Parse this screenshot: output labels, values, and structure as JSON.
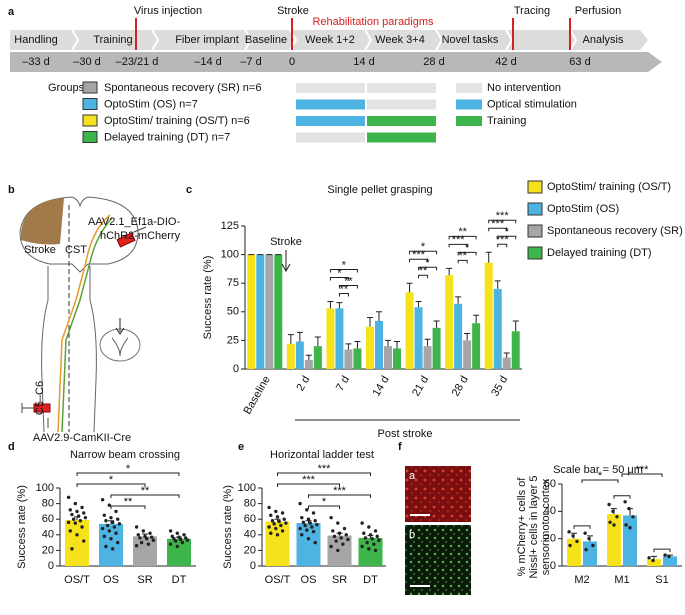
{
  "panel_labels": [
    "a",
    "b",
    "c",
    "d",
    "e",
    "f"
  ],
  "timeline": {
    "events": [
      "Virus injection",
      "Stroke",
      "Tracing",
      "Perfusion"
    ],
    "rehabilitation": "Rehabilitation paradigms",
    "phases": [
      "Handling",
      "Training",
      "Fiber implant",
      "Baseline",
      "Week 1+2",
      "Week 3+4",
      "Novel tasks",
      "Analysis"
    ],
    "days": [
      "–33 d",
      "–30 d",
      "–23/21 d",
      "–14 d",
      "–7 d",
      "0",
      "14 d",
      "28 d",
      "42 d",
      "63 d"
    ],
    "groups_title": "Groups",
    "groups": [
      "Spontaneous recovery (SR) n=6",
      "OptoStim (OS) n=7",
      "OptoStim/ training (OS/T) n=6",
      "Delayed training (DT) n=7"
    ],
    "group_colors": [
      "#a6a6a6",
      "#4cb3e2",
      "#f5e21b",
      "#3db54a"
    ],
    "conditions": [
      "No intervention",
      "Optical stimulation",
      "Training"
    ],
    "condition_colors": [
      "#e3e3e3",
      "#4cb3e2",
      "#3db54a"
    ],
    "schedule": [
      [
        0,
        0
      ],
      [
        1,
        0
      ],
      [
        1,
        2
      ],
      [
        0,
        2
      ]
    ]
  },
  "schematic": {
    "virus_top": [
      "AAV2.1_Ef1a-DIO-",
      "hChR2-mCherry"
    ],
    "stroke": "Stroke",
    "tract": "CST",
    "segment": "C5–C6",
    "virus_bottom": "AAV2.9-CamKII-Cre"
  },
  "histology": {
    "scale_bar": "Scale bar = 50 μm",
    "images": [
      "a",
      "b"
    ]
  },
  "chart_data": [
    {
      "type": "bar",
      "title": "Single pellet grasping",
      "ylabel": "Success rate (%)",
      "xlabel": "Post stroke",
      "annotation": "Stroke",
      "categories": [
        "Baseline",
        "2 d",
        "7 d",
        "14 d",
        "21 d",
        "28 d",
        "35 d"
      ],
      "series": [
        {
          "name": "OptoStim/ training (OS/T)",
          "color": "#f5e21b",
          "values": [
            100,
            22,
            53,
            37,
            67,
            82,
            93
          ],
          "errors": [
            0,
            8,
            6,
            8,
            8,
            6,
            9
          ]
        },
        {
          "name": "OptoStim (OS)",
          "color": "#4cb3e2",
          "values": [
            100,
            24,
            53,
            42,
            54,
            57,
            70
          ],
          "errors": [
            0,
            8,
            5,
            8,
            5,
            6,
            7
          ]
        },
        {
          "name": "Spontaneous recovery (SR)",
          "color": "#a6a6a6",
          "values": [
            100,
            8,
            17,
            20,
            20,
            25,
            10
          ],
          "errors": [
            0,
            4,
            5,
            5,
            6,
            6,
            4
          ]
        },
        {
          "name": "Delayed training (DT)",
          "color": "#3db54a",
          "values": [
            100,
            20,
            18,
            18,
            36,
            40,
            33
          ],
          "errors": [
            0,
            8,
            6,
            6,
            6,
            7,
            9
          ]
        }
      ],
      "ylim": [
        0,
        125
      ],
      "yticks": [
        0,
        25,
        50,
        75,
        100,
        125
      ],
      "significance": [
        [],
        [],
        [
          "*",
          "*",
          "**",
          "**"
        ],
        [],
        [
          "*",
          "***",
          "*",
          "**"
        ],
        [
          "**",
          "***",
          "*",
          "**"
        ],
        [
          "***",
          "***",
          "*",
          "***"
        ]
      ]
    },
    {
      "type": "bar",
      "title": "Narrow beam crossing",
      "ylabel": "Success rate (%)",
      "categories": [
        "OS/T",
        "OS",
        "SR",
        "DT"
      ],
      "colors": [
        "#f5e21b",
        "#4cb3e2",
        "#a6a6a6",
        "#3db54a"
      ],
      "values": [
        59,
        54,
        38,
        35
      ],
      "errors": [
        4,
        4,
        3,
        2
      ],
      "points": [
        [
          88,
          80,
          75,
          72,
          70,
          68,
          66,
          64,
          62,
          60,
          58,
          56,
          55,
          50,
          45,
          40,
          32,
          22
        ],
        [
          85,
          78,
          70,
          65,
          62,
          60,
          58,
          56,
          54,
          52,
          50,
          48,
          45,
          42,
          38,
          35,
          30,
          25,
          22
        ],
        [
          50,
          45,
          42,
          40,
          38,
          37,
          36,
          35,
          33,
          30,
          28,
          26
        ],
        [
          45,
          42,
          40,
          38,
          37,
          36,
          35,
          34,
          33,
          32,
          30,
          28,
          25
        ]
      ],
      "ylim": [
        0,
        100
      ],
      "yticks": [
        0,
        20,
        40,
        60,
        80,
        100
      ],
      "significance": [
        "*",
        "*",
        "**",
        "**"
      ]
    },
    {
      "type": "bar",
      "title": "Horizontal ladder test",
      "ylabel": "Success rate (%)",
      "categories": [
        "OS/T",
        "OS",
        "SR",
        "DT"
      ],
      "colors": [
        "#f5e21b",
        "#4cb3e2",
        "#a6a6a6",
        "#3db54a"
      ],
      "values": [
        57,
        55,
        39,
        36
      ],
      "errors": [
        3,
        3,
        3,
        3
      ],
      "points": [
        [
          75,
          70,
          68,
          65,
          63,
          60,
          58,
          57,
          55,
          54,
          52,
          50,
          48,
          45,
          42,
          40
        ],
        [
          80,
          72,
          68,
          62,
          60,
          58,
          56,
          55,
          53,
          52,
          50,
          48,
          46,
          44,
          40,
          35,
          30
        ],
        [
          62,
          55,
          48,
          45,
          42,
          40,
          38,
          36,
          34,
          32,
          28,
          25,
          20
        ],
        [
          55,
          50,
          45,
          42,
          40,
          38,
          36,
          35,
          33,
          30,
          28,
          25,
          22,
          20
        ]
      ],
      "ylim": [
        0,
        100
      ],
      "yticks": [
        0,
        20,
        40,
        60,
        80,
        100
      ],
      "significance": [
        "***",
        "***",
        "*",
        "***"
      ]
    },
    {
      "type": "bar",
      "ylabel": [
        "% mCherry+ cells of",
        "Nissl+ cells in layer 5",
        "sensorimotor cortex"
      ],
      "categories": [
        "M2",
        "M1",
        "S1"
      ],
      "series": [
        {
          "color": "#f5e21b",
          "values": [
            20,
            38,
            5
          ],
          "errors": [
            4,
            4,
            2
          ],
          "points": [
            [
              25,
              22,
              18,
              15
            ],
            [
              45,
              40,
              36,
              32,
              30
            ],
            [
              6,
              4
            ]
          ]
        },
        {
          "color": "#4cb3e2",
          "values": [
            18,
            37,
            7
          ],
          "errors": [
            4,
            5,
            1
          ],
          "points": [
            [
              24,
              20,
              15,
              12
            ],
            [
              47,
              42,
              36,
              30,
              28
            ],
            [
              8,
              7
            ]
          ]
        }
      ],
      "ylim": [
        0,
        60
      ],
      "yticks": [
        0,
        20,
        40,
        60
      ],
      "significance": [
        "*",
        "***"
      ]
    }
  ]
}
